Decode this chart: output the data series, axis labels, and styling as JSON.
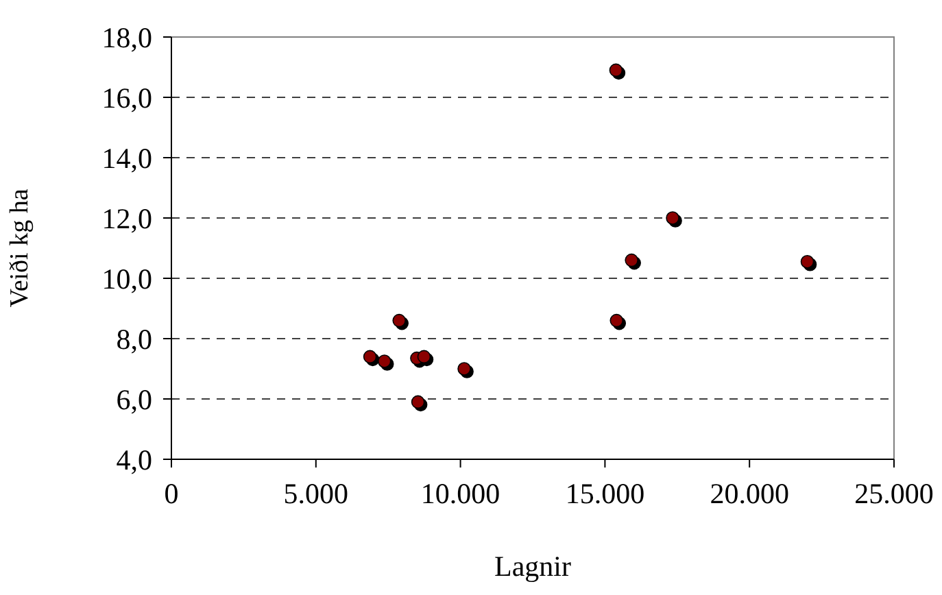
{
  "chart_data": {
    "type": "scatter",
    "xlabel": "Lagnir",
    "ylabel": "Veiði kg ha",
    "x": [
      6870,
      7370,
      7880,
      8490,
      8740,
      8530,
      10130,
      15380,
      15400,
      15920,
      17340,
      22000
    ],
    "series": [
      {
        "color": "#8b0000",
        "values": [
          7.4,
          7.25,
          8.6,
          7.35,
          7.4,
          5.9,
          7.0,
          16.9,
          8.6,
          10.6,
          12.0,
          10.55
        ]
      }
    ],
    "xlim": [
      0,
      25000
    ],
    "ylim": [
      4,
      18
    ],
    "xticks": [
      0,
      {
        "value": 5000,
        "label": "5.000"
      },
      {
        "value": 10000,
        "label": "10.000"
      },
      {
        "value": 15000,
        "label": "15.000"
      },
      {
        "value": 20000,
        "label": "20.000"
      },
      {
        "value": 25000,
        "label": "25.000"
      }
    ],
    "yticks": [
      {
        "value": 4,
        "label": "4,0"
      },
      {
        "value": 6,
        "label": "6,0"
      },
      {
        "value": 8,
        "label": "8,0"
      },
      {
        "value": 10,
        "label": "10,0"
      },
      {
        "value": 12,
        "label": "12,0"
      },
      {
        "value": 14,
        "label": "14,0"
      },
      {
        "value": 16,
        "label": "16,0"
      },
      {
        "value": 18,
        "label": "18,0"
      }
    ],
    "grid": "y",
    "marker": "circle"
  }
}
